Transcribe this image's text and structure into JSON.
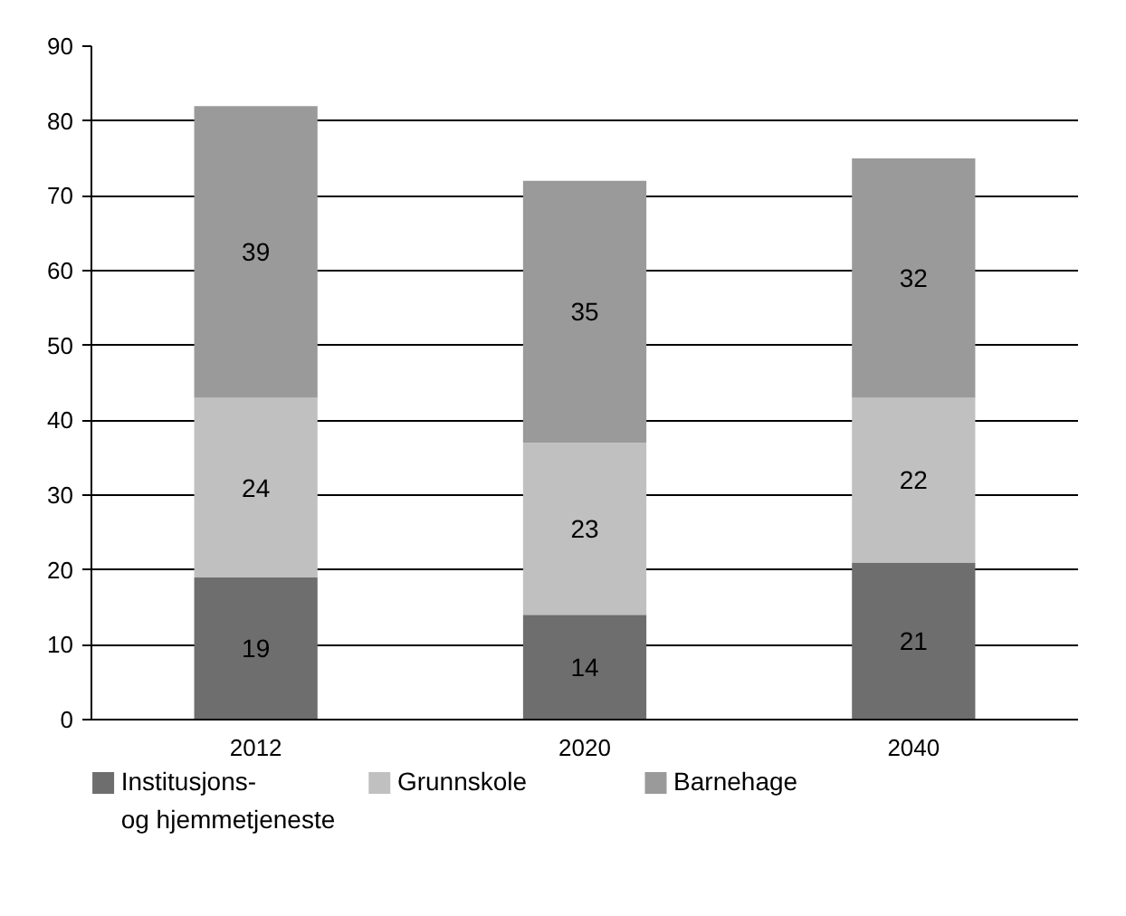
{
  "chart_data": {
    "type": "bar",
    "stacked": true,
    "categories": [
      "2012",
      "2020",
      "2040"
    ],
    "series": [
      {
        "name": "Institusjons-\nog hjemmetjeneste",
        "color": "#6e6e6e",
        "values": [
          19,
          14,
          21
        ]
      },
      {
        "name": "Grunnskole",
        "color": "#c0c0c0",
        "values": [
          24,
          23,
          22
        ]
      },
      {
        "name": "Barnehage",
        "color": "#9a9a9a",
        "values": [
          39,
          35,
          32
        ]
      }
    ],
    "ylim": [
      0,
      90
    ],
    "yticks": [
      0,
      10,
      20,
      30,
      40,
      50,
      60,
      70,
      80,
      90
    ],
    "grid": "y",
    "legend": "bottom left",
    "data_labels": true
  }
}
